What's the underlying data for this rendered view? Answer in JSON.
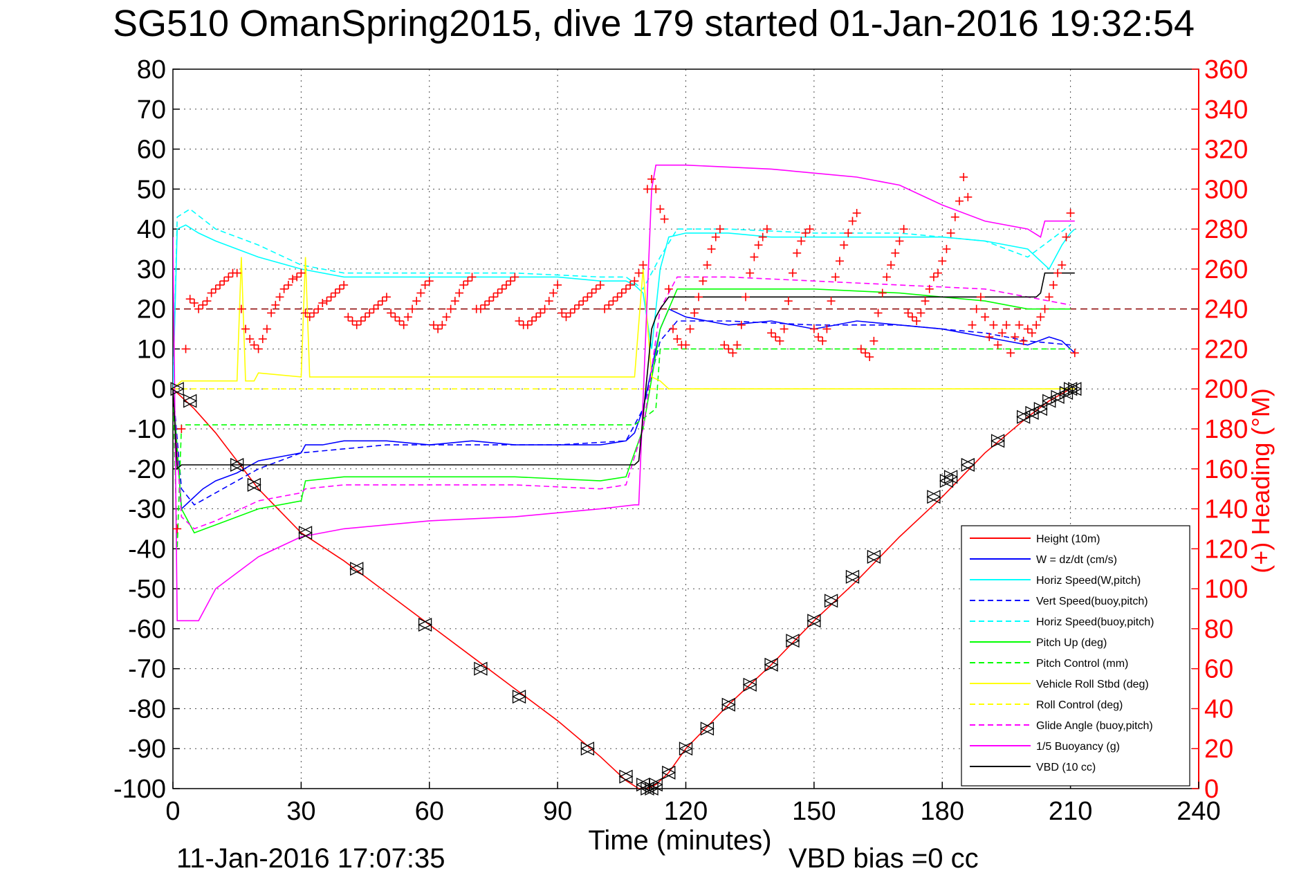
{
  "chart_data": {
    "type": "line",
    "title": "SG510 OmanSpring2015, dive 179 started 01-Jan-2016 19:32:54",
    "xlabel": "Time (minutes)",
    "ylabel_right": "(+) Heading (°M)",
    "footer_left": "11-Jan-2016 17:07:35",
    "footer_right": "VBD bias =0 cc",
    "xlim": [
      0,
      240
    ],
    "ylim": [
      -100,
      80
    ],
    "ylim_right": [
      0,
      360
    ],
    "x_ticks": [
      0,
      30,
      60,
      90,
      120,
      150,
      180,
      210,
      240
    ],
    "y_ticks": [
      80,
      70,
      60,
      50,
      40,
      30,
      20,
      10,
      0,
      -10,
      -20,
      -30,
      -40,
      -50,
      -60,
      -70,
      -80,
      -90,
      -100
    ],
    "y_ticks_right": [
      360,
      340,
      320,
      300,
      280,
      260,
      240,
      220,
      200,
      180,
      160,
      140,
      120,
      100,
      80,
      60,
      40,
      20,
      0
    ],
    "grid": true,
    "legend_position": "bottom-right",
    "colors": {
      "red": "#ff0000",
      "blue": "#0000ff",
      "cyan": "#00ffff",
      "green": "#00ff00",
      "yellow": "#ffff00",
      "magenta": "#ff00ff",
      "black": "#000000",
      "darkred": "#8b0000"
    },
    "series": [
      {
        "name": "Height (10m)",
        "color": "#ff0000",
        "dash": false,
        "x": [
          0,
          5,
          10,
          20,
          30,
          40,
          50,
          60,
          70,
          80,
          90,
          100,
          106,
          109,
          111,
          113,
          116,
          120,
          130,
          140,
          150,
          160,
          170,
          180,
          190,
          200,
          205,
          210,
          211
        ],
        "y": [
          0,
          -5,
          -11,
          -25,
          -36,
          -43,
          -51,
          -59,
          -67,
          -75,
          -83,
          -92,
          -98,
          -100,
          -100,
          -99,
          -96,
          -90,
          -79,
          -69,
          -58,
          -48,
          -37,
          -27,
          -16,
          -7,
          -3,
          0,
          0
        ]
      },
      {
        "name": "W = dz/dt (cm/s)",
        "color": "#0000ff",
        "dash": false,
        "x": [
          0,
          1,
          2,
          4,
          7,
          10,
          15,
          20,
          25,
          30,
          31,
          35,
          40,
          50,
          60,
          70,
          80,
          90,
          100,
          106,
          108,
          110,
          112,
          114,
          116,
          120,
          125,
          130,
          140,
          150,
          160,
          170,
          180,
          185,
          190,
          195,
          200,
          205,
          208,
          210,
          211
        ],
        "y": [
          0,
          -15,
          -30,
          -28,
          -25,
          -23,
          -21,
          -18,
          -17,
          -16,
          -14,
          -14,
          -13,
          -13,
          -14,
          -13,
          -14,
          -14,
          -14,
          -13,
          -11,
          -5,
          5,
          15,
          20,
          18,
          17,
          16,
          17,
          15,
          17,
          16,
          15,
          14,
          13,
          12,
          11,
          13,
          12,
          10,
          9
        ]
      },
      {
        "name": "Horiz Speed(W,pitch)",
        "color": "#00ffff",
        "dash": false,
        "x": [
          0,
          1,
          3,
          6,
          10,
          20,
          30,
          40,
          50,
          60,
          70,
          80,
          90,
          100,
          106,
          108,
          110,
          112,
          114,
          116,
          120,
          130,
          140,
          150,
          160,
          170,
          180,
          190,
          200,
          205,
          208,
          210,
          211
        ],
        "y": [
          0,
          40,
          41,
          39,
          37,
          33,
          30,
          28,
          28,
          28,
          28,
          28,
          28,
          27,
          27,
          26,
          24,
          10,
          30,
          38,
          39,
          39,
          38,
          38,
          38,
          38,
          38,
          37,
          35,
          30,
          36,
          39,
          40
        ]
      },
      {
        "name": "Vert Speed(buoy,pitch)",
        "color": "#0000ff",
        "dash": true,
        "x": [
          0,
          2,
          5,
          10,
          20,
          30,
          50,
          70,
          90,
          106,
          110,
          114,
          118,
          130,
          150,
          170,
          190,
          200,
          210
        ],
        "y": [
          0,
          -25,
          -29,
          -26,
          -20,
          -16,
          -14,
          -14,
          -14,
          -13,
          -5,
          12,
          17,
          17,
          16,
          16,
          14,
          12,
          11
        ]
      },
      {
        "name": "Horiz Speed(buoy,pitch)",
        "color": "#00ffff",
        "dash": true,
        "x": [
          0,
          1,
          4,
          10,
          20,
          30,
          40,
          60,
          80,
          100,
          106,
          110,
          114,
          118,
          130,
          150,
          170,
          190,
          200,
          210
        ],
        "y": [
          0,
          43,
          45,
          40,
          36,
          31,
          29,
          29,
          29,
          28,
          28,
          25,
          33,
          40,
          40,
          39,
          39,
          37,
          33,
          41
        ]
      },
      {
        "name": "Pitch Up (deg)",
        "color": "#00ff00",
        "dash": false,
        "x": [
          0,
          2,
          5,
          10,
          20,
          30,
          31,
          40,
          60,
          80,
          100,
          106,
          110,
          114,
          118,
          130,
          150,
          170,
          190,
          200,
          210
        ],
        "y": [
          0,
          -30,
          -36,
          -34,
          -30,
          -28,
          -23,
          -22,
          -22,
          -22,
          -23,
          -22,
          -10,
          15,
          25,
          25,
          25,
          24,
          22,
          20,
          20
        ]
      },
      {
        "name": "Pitch Control (mm)",
        "color": "#00ff00",
        "dash": true,
        "x": [
          0,
          1,
          2,
          5,
          30,
          31,
          106,
          108,
          113,
          114,
          118,
          130,
          150,
          170,
          180,
          190,
          200,
          210
        ],
        "y": [
          0,
          -40,
          -9,
          -9,
          -9,
          -9,
          -9,
          -9,
          -5,
          10,
          10,
          10,
          10,
          10,
          10,
          10,
          10,
          10
        ]
      },
      {
        "name": "Vehicle Roll Stbd (deg)",
        "color": "#ffff00",
        "dash": false,
        "x": [
          0,
          2,
          5,
          10,
          15,
          16,
          17,
          18,
          19,
          20,
          30,
          31,
          32,
          33,
          40,
          50,
          60,
          70,
          80,
          90,
          100,
          108,
          110,
          112,
          114,
          116,
          120,
          130,
          140,
          150,
          160,
          170,
          180,
          190,
          200,
          210,
          211
        ],
        "y": [
          0,
          2,
          2,
          2,
          2,
          33,
          2,
          2,
          2,
          4,
          3,
          33,
          3,
          3,
          3,
          3,
          3,
          3,
          3,
          3,
          3,
          3,
          30,
          3,
          2,
          0,
          0,
          0,
          0,
          0,
          0,
          0,
          0,
          0,
          0,
          0,
          0
        ]
      },
      {
        "name": "Roll Control (deg)",
        "color": "#ffff00",
        "dash": true,
        "x": [
          0,
          5,
          20,
          40,
          60,
          80,
          100,
          110,
          114,
          120,
          140,
          160,
          180,
          200,
          210
        ],
        "y": [
          0,
          0,
          0,
          0,
          0,
          0,
          0,
          0,
          0,
          0,
          0,
          0,
          0,
          0,
          0
        ]
      },
      {
        "name": "Glide Angle (buoy,pitch)",
        "color": "#ff00ff",
        "dash": true,
        "x": [
          0,
          2,
          5,
          10,
          20,
          30,
          31,
          40,
          60,
          80,
          100,
          106,
          110,
          114,
          118,
          130,
          150,
          170,
          190,
          200,
          210
        ],
        "y": [
          0,
          -32,
          -35,
          -33,
          -28,
          -26,
          -25,
          -24,
          -24,
          -24,
          -25,
          -24,
          -10,
          20,
          28,
          28,
          27,
          26,
          25,
          23,
          21
        ]
      },
      {
        "name": "1/5 Buoyancy (g)",
        "color": "#ff00ff",
        "dash": false,
        "x": [
          0,
          1,
          2,
          6,
          10,
          20,
          30,
          40,
          60,
          80,
          100,
          108,
          109,
          112,
          113,
          116,
          120,
          140,
          160,
          170,
          180,
          190,
          200,
          203,
          204,
          210,
          211
        ],
        "y": [
          38,
          -58,
          -58,
          -58,
          -50,
          -42,
          -37,
          -35,
          -33,
          -32,
          -30,
          -29,
          -29,
          50,
          56,
          56,
          56,
          55,
          53,
          51,
          46,
          42,
          40,
          38,
          42,
          42,
          42
        ]
      },
      {
        "name": "VBD (10 cc)",
        "color": "#000000",
        "dash": false,
        "x": [
          0,
          1,
          2,
          60,
          108,
          109,
          112,
          113,
          114,
          116,
          118,
          150,
          200,
          201,
          202,
          203,
          204,
          210,
          211
        ],
        "y": [
          0,
          -20,
          -19,
          -19,
          -19,
          -18,
          15,
          18,
          20,
          23,
          23,
          23,
          23,
          23,
          23,
          24,
          29,
          29,
          29
        ]
      }
    ],
    "heading": {
      "name": "(+) Heading",
      "axis": "right",
      "marker": "+",
      "color": "#ff0000",
      "reference_line": 240,
      "reference_color": "#8b0000",
      "x": [
        1,
        2,
        3,
        4,
        5,
        6,
        7,
        8,
        9,
        10,
        11,
        12,
        13,
        14,
        15,
        16,
        17,
        18,
        19,
        20,
        21,
        22,
        23,
        24,
        25,
        26,
        27,
        28,
        29,
        30,
        31,
        32,
        33,
        34,
        35,
        36,
        37,
        38,
        39,
        40,
        41,
        42,
        43,
        44,
        45,
        46,
        47,
        48,
        49,
        50,
        51,
        52,
        53,
        54,
        55,
        56,
        57,
        58,
        59,
        60,
        61,
        62,
        63,
        64,
        65,
        66,
        67,
        68,
        69,
        70,
        71,
        72,
        73,
        74,
        75,
        76,
        77,
        78,
        79,
        80,
        81,
        82,
        83,
        84,
        85,
        86,
        87,
        88,
        89,
        90,
        91,
        92,
        93,
        94,
        95,
        96,
        97,
        98,
        99,
        100,
        101,
        102,
        103,
        104,
        105,
        106,
        107,
        108,
        109,
        110,
        111,
        112,
        113,
        114,
        115,
        116,
        117,
        118,
        119,
        120,
        121,
        122,
        123,
        124,
        125,
        126,
        127,
        128,
        129,
        130,
        131,
        132,
        133,
        134,
        135,
        136,
        137,
        138,
        139,
        140,
        141,
        142,
        143,
        144,
        145,
        146,
        147,
        148,
        149,
        150,
        151,
        152,
        153,
        154,
        155,
        156,
        157,
        158,
        159,
        160,
        161,
        162,
        163,
        164,
        165,
        166,
        167,
        168,
        169,
        170,
        171,
        172,
        173,
        174,
        175,
        176,
        177,
        178,
        179,
        180,
        181,
        182,
        183,
        184,
        185,
        186,
        187,
        188,
        189,
        190,
        191,
        192,
        193,
        194,
        195,
        196,
        197,
        198,
        199,
        200,
        201,
        202,
        203,
        204,
        205,
        206,
        207,
        208,
        209,
        210,
        211
      ],
      "y": [
        130,
        180,
        220,
        245,
        243,
        240,
        242,
        244,
        248,
        250,
        252,
        254,
        256,
        258,
        258,
        240,
        230,
        225,
        222,
        220,
        225,
        230,
        238,
        242,
        246,
        250,
        252,
        255,
        256,
        258,
        238,
        236,
        238,
        240,
        243,
        244,
        246,
        248,
        250,
        252,
        236,
        234,
        232,
        234,
        236,
        238,
        240,
        242,
        244,
        246,
        238,
        236,
        234,
        232,
        236,
        240,
        244,
        248,
        252,
        254,
        232,
        230,
        232,
        236,
        240,
        244,
        248,
        252,
        254,
        256,
        240,
        240,
        242,
        244,
        246,
        248,
        250,
        252,
        254,
        256,
        234,
        232,
        232,
        234,
        236,
        238,
        240,
        244,
        248,
        252,
        238,
        236,
        238,
        240,
        242,
        244,
        246,
        248,
        250,
        252,
        240,
        242,
        244,
        246,
        248,
        250,
        252,
        254,
        258,
        262,
        300,
        305,
        300,
        290,
        285,
        250,
        230,
        225,
        222,
        222,
        230,
        238,
        246,
        254,
        262,
        270,
        276,
        280,
        222,
        220,
        218,
        222,
        232,
        246,
        258,
        266,
        272,
        276,
        280,
        228,
        226,
        224,
        230,
        244,
        258,
        268,
        274,
        278,
        280,
        230,
        226,
        224,
        230,
        244,
        256,
        264,
        272,
        278,
        284,
        288,
        220,
        218,
        216,
        224,
        238,
        248,
        256,
        262,
        268,
        274,
        280,
        238,
        236,
        234,
        238,
        244,
        250,
        256,
        258,
        264,
        270,
        278,
        286,
        294,
        306,
        296,
        232,
        240,
        246,
        236,
        226,
        232,
        222,
        228,
        232,
        218,
        226,
        232,
        224,
        230,
        228,
        232,
        236,
        240,
        246,
        252,
        258,
        262,
        276,
        288,
        218
      ]
    },
    "markers": {
      "name": "Height (10m) samples",
      "shape": "triangle",
      "color": "#000000",
      "x": [
        1,
        4,
        15,
        19,
        31,
        43,
        59,
        72,
        81,
        97,
        106,
        110,
        111,
        112,
        113,
        116,
        120,
        125,
        130,
        135,
        140,
        145,
        150,
        154,
        159,
        164,
        178,
        181,
        182,
        186,
        193,
        199,
        201,
        203,
        205,
        207,
        209,
        210,
        211
      ],
      "y": [
        0,
        -3,
        -19,
        -24,
        -36,
        -45,
        -59,
        -70,
        -77,
        -90,
        -97,
        -99,
        -100,
        -100,
        -99,
        -96,
        -90,
        -85,
        -79,
        -74,
        -69,
        -63,
        -58,
        -53,
        -47,
        -42,
        -27,
        -23,
        -22,
        -19,
        -13,
        -7,
        -6,
        -5,
        -3,
        -2,
        -1,
        0,
        0
      ]
    }
  }
}
